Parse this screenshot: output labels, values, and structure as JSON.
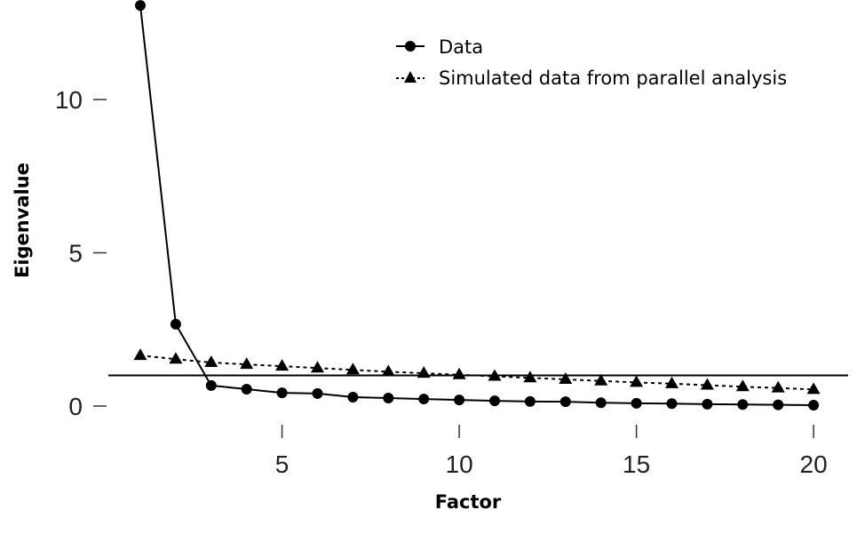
{
  "chart_data": {
    "type": "line",
    "title": "",
    "xlabel": "Factor",
    "ylabel": "Eigenvalue",
    "xlim": [
      1,
      20
    ],
    "ylim": [
      0,
      13.1
    ],
    "x_ticks": [
      5,
      10,
      15,
      20
    ],
    "y_ticks": [
      0,
      5,
      10
    ],
    "reference_line": {
      "y": 1.0
    },
    "legend_position": "top-right",
    "grid": false,
    "x": [
      1,
      2,
      3,
      4,
      5,
      6,
      7,
      8,
      9,
      10,
      11,
      12,
      13,
      14,
      15,
      16,
      17,
      18,
      19,
      20
    ],
    "series": [
      {
        "name": "Data",
        "marker": "circle",
        "line": "solid",
        "values": [
          13.07,
          2.67,
          0.67,
          0.55,
          0.43,
          0.41,
          0.29,
          0.26,
          0.23,
          0.2,
          0.17,
          0.15,
          0.14,
          0.11,
          0.09,
          0.08,
          0.06,
          0.05,
          0.04,
          0.03
        ]
      },
      {
        "name": "Simulated data from parallel analysis",
        "marker": "triangle",
        "line": "dotted",
        "values": [
          1.65,
          1.53,
          1.42,
          1.36,
          1.3,
          1.24,
          1.18,
          1.12,
          1.07,
          1.02,
          0.97,
          0.92,
          0.87,
          0.82,
          0.77,
          0.73,
          0.68,
          0.63,
          0.59,
          0.54
        ]
      }
    ]
  }
}
